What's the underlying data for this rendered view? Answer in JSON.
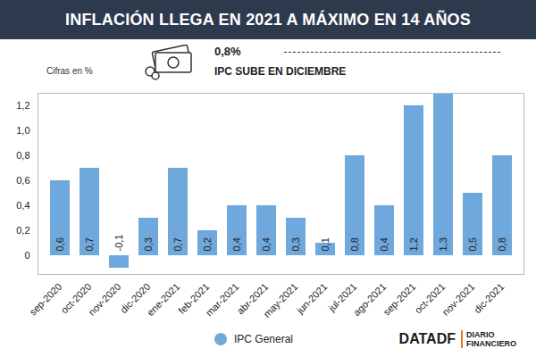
{
  "chart_data": {
    "type": "bar",
    "title": "INFLACIÓN LLEGA EN 2021 A MÁXIMO EN 14 AÑOS",
    "unit_note": "Cifras en %",
    "annotations": [
      "0,8%",
      "IPC SUBE EN DICIEMBRE"
    ],
    "brand": [
      "DATADF",
      "DIARIO FINANCIERO"
    ],
    "categories": [
      "sep-2020",
      "oct-2020",
      "nov-2020",
      "dic-2020",
      "ene-2021",
      "feb-2021",
      "mar-2021",
      "abr-2021",
      "may-2021",
      "jun-2021",
      "jul-2021",
      "ago-2021",
      "sep-2021",
      "oct-2021",
      "nov-2021",
      "dic-2021"
    ],
    "series": [
      {
        "name": "IPC General",
        "color": "#6fa8dc",
        "values": [
          0.6,
          0.7,
          -0.1,
          0.3,
          0.7,
          0.2,
          0.4,
          0.4,
          0.3,
          0.1,
          0.8,
          0.4,
          1.2,
          1.3,
          0.5,
          0.8
        ],
        "value_labels": [
          "0,6",
          "0,7",
          "-0,1",
          "0,3",
          "0,7",
          "0,2",
          "0,4",
          "0,4",
          "0,3",
          "0,1",
          "0,8",
          "0,4",
          "1,2",
          "1,3",
          "0,5",
          "0,8"
        ]
      }
    ],
    "ylim": [
      -0.15,
      1.3
    ],
    "yticks": [
      0,
      {
        "value": 0.2,
        "label": "0,2"
      },
      {
        "value": 0.4,
        "label": "0,4"
      },
      {
        "value": 0.6,
        "label": "0,6"
      },
      {
        "value": 0.8,
        "label": "0,8"
      },
      {
        "value": 1.0,
        "label": "1,0"
      },
      {
        "value": 1.2,
        "label": "1,2"
      }
    ],
    "grid": false,
    "data_labels": true,
    "legend": "bottom"
  }
}
